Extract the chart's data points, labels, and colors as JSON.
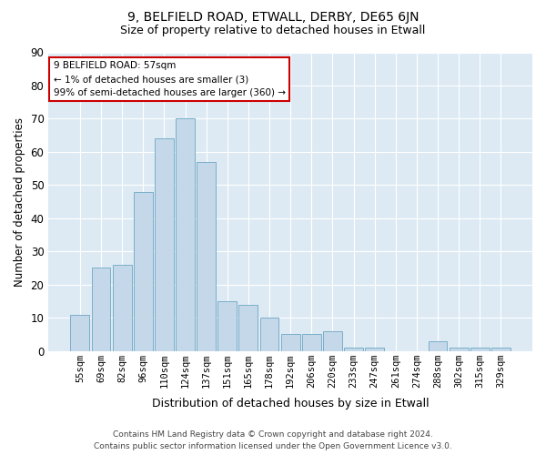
{
  "title": "9, BELFIELD ROAD, ETWALL, DERBY, DE65 6JN",
  "subtitle": "Size of property relative to detached houses in Etwall",
  "xlabel": "Distribution of detached houses by size in Etwall",
  "ylabel": "Number of detached properties",
  "categories": [
    "55sqm",
    "69sqm",
    "82sqm",
    "96sqm",
    "110sqm",
    "124sqm",
    "137sqm",
    "151sqm",
    "165sqm",
    "178sqm",
    "192sqm",
    "206sqm",
    "220sqm",
    "233sqm",
    "247sqm",
    "261sqm",
    "274sqm",
    "288sqm",
    "302sqm",
    "315sqm",
    "329sqm"
  ],
  "values": [
    11,
    25,
    26,
    48,
    64,
    70,
    57,
    15,
    14,
    10,
    5,
    5,
    6,
    1,
    1,
    0,
    0,
    3,
    1,
    1,
    1
  ],
  "bar_color": "#c5d8ea",
  "bar_edge_color": "#7aafc8",
  "ylim": [
    0,
    90
  ],
  "yticks": [
    0,
    10,
    20,
    30,
    40,
    50,
    60,
    70,
    80,
    90
  ],
  "annotation_box_text": "9 BELFIELD ROAD: 57sqm\n← 1% of detached houses are smaller (3)\n99% of semi-detached houses are larger (360) →",
  "annotation_box_color": "#ffffff",
  "annotation_box_edge_color": "#cc0000",
  "footer_line1": "Contains HM Land Registry data © Crown copyright and database right 2024.",
  "footer_line2": "Contains public sector information licensed under the Open Government Licence v3.0.",
  "fig_background": "#ffffff",
  "plot_background": "#ddeaf4",
  "grid_color": "#ffffff",
  "title_fontsize": 10,
  "subtitle_fontsize": 9
}
